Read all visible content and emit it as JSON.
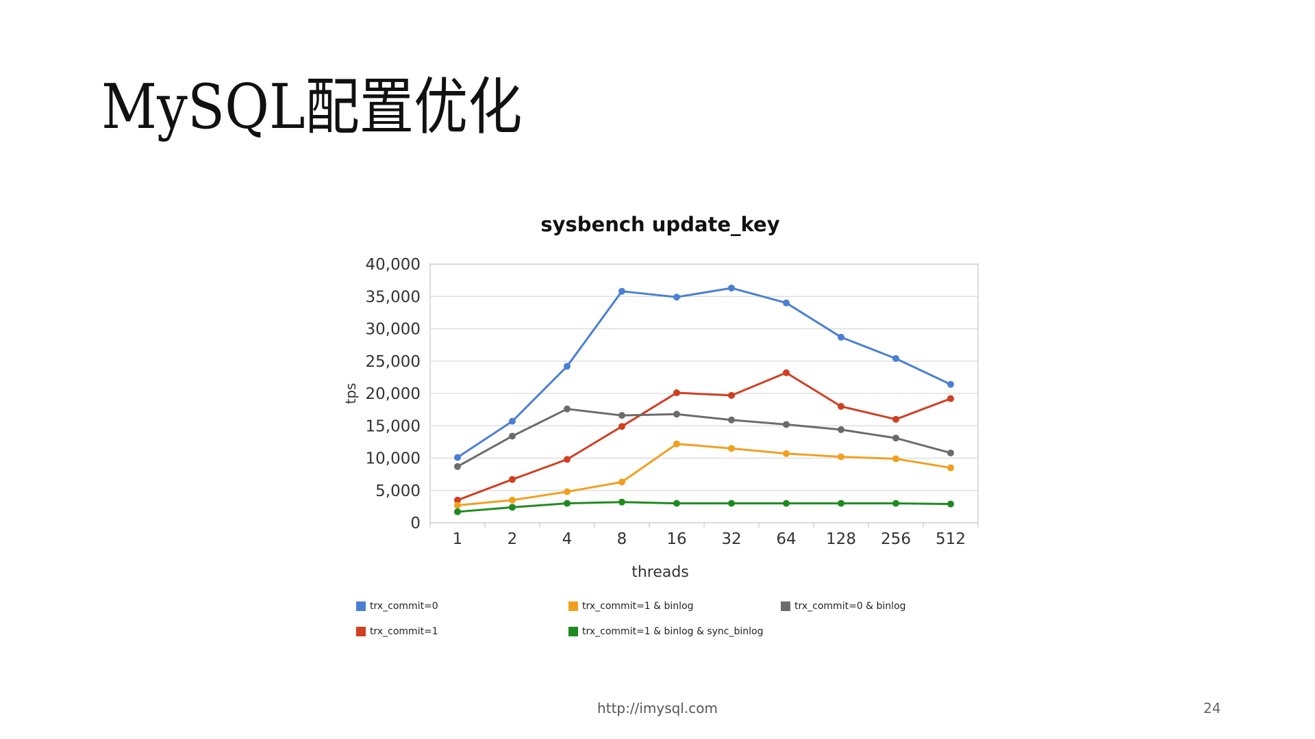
{
  "slide": {
    "title": "MySQL配置优化",
    "footer_url": "http://imysql.com",
    "page_number": "24"
  },
  "chart_data": {
    "type": "line",
    "title": "sysbench update_key",
    "xlabel": "threads",
    "ylabel": "tps",
    "categories": [
      "1",
      "2",
      "4",
      "8",
      "16",
      "32",
      "64",
      "128",
      "256",
      "512"
    ],
    "ylim": [
      0,
      40000
    ],
    "yticks": [
      0,
      5000,
      10000,
      15000,
      20000,
      25000,
      30000,
      35000,
      40000
    ],
    "ytick_labels": [
      "0",
      "5,000",
      "10,000",
      "15,000",
      "20,000",
      "25,000",
      "30,000",
      "35,000",
      "40,000"
    ],
    "grid": true,
    "legend_position": "bottom",
    "series": [
      {
        "name": "trx_commit=0",
        "color": "#4a7fd4",
        "values": [
          10100,
          15700,
          24200,
          35800,
          34900,
          36300,
          34000,
          28700,
          25400,
          21400
        ]
      },
      {
        "name": "trx_commit=1",
        "color": "#d03f22",
        "values": [
          3500,
          6700,
          9800,
          14900,
          20100,
          19700,
          23200,
          18000,
          16000,
          19200
        ]
      },
      {
        "name": "trx_commit=1 & binlog",
        "color": "#f0a020",
        "values": [
          2700,
          3500,
          4800,
          6300,
          12200,
          11500,
          10700,
          10200,
          9900,
          8500
        ]
      },
      {
        "name": "trx_commit=1 & binlog & sync_binlog",
        "color": "#1f8a1f",
        "values": [
          1700,
          2400,
          3000,
          3200,
          3000,
          3000,
          3000,
          3000,
          3000,
          2900
        ]
      },
      {
        "name": "trx_commit=0 & binlog",
        "color": "#6b6b6b",
        "values": [
          8700,
          13400,
          17600,
          16600,
          16800,
          15900,
          15200,
          14400,
          13100,
          10800
        ]
      }
    ]
  }
}
